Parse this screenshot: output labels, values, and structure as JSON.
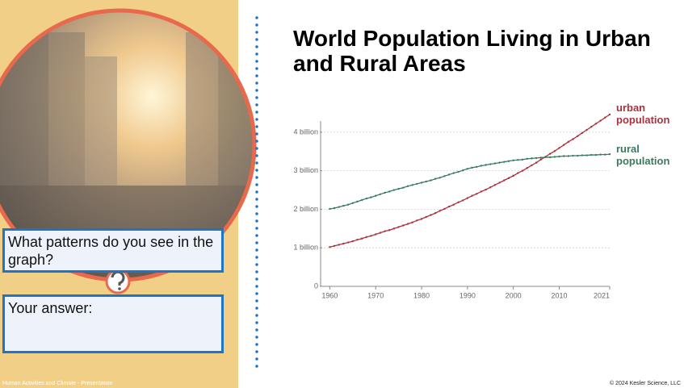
{
  "title": "World Population Living in Urban and Rural Areas",
  "question": "What patterns do you see in the graph?",
  "answer_label": "Your answer:",
  "footer_left": "Human Activities and Climate - Presentation",
  "footer_right": "© 2024 Kesler Science, LLC",
  "chart_data": {
    "type": "line",
    "x": [
      1960,
      1961,
      1962,
      1963,
      1964,
      1965,
      1966,
      1967,
      1968,
      1969,
      1970,
      1971,
      1972,
      1973,
      1974,
      1975,
      1976,
      1977,
      1978,
      1979,
      1980,
      1981,
      1982,
      1983,
      1984,
      1985,
      1986,
      1987,
      1988,
      1989,
      1990,
      1991,
      1992,
      1993,
      1994,
      1995,
      1996,
      1997,
      1998,
      1999,
      2000,
      2001,
      2002,
      2003,
      2004,
      2005,
      2006,
      2007,
      2008,
      2009,
      2010,
      2011,
      2012,
      2013,
      2014,
      2015,
      2016,
      2017,
      2018,
      2019,
      2020,
      2021
    ],
    "series": [
      {
        "name": "urban population",
        "color": "#a8323e",
        "values": [
          1.02,
          1.05,
          1.08,
          1.11,
          1.14,
          1.17,
          1.21,
          1.24,
          1.28,
          1.31,
          1.35,
          1.39,
          1.43,
          1.46,
          1.5,
          1.54,
          1.58,
          1.62,
          1.66,
          1.71,
          1.75,
          1.8,
          1.85,
          1.9,
          1.96,
          2.01,
          2.07,
          2.12,
          2.18,
          2.23,
          2.29,
          2.35,
          2.4,
          2.46,
          2.51,
          2.57,
          2.63,
          2.69,
          2.75,
          2.81,
          2.87,
          2.94,
          3.0,
          3.07,
          3.14,
          3.21,
          3.29,
          3.36,
          3.44,
          3.51,
          3.59,
          3.67,
          3.75,
          3.82,
          3.9,
          3.98,
          4.06,
          4.14,
          4.22,
          4.3,
          4.38,
          4.46
        ]
      },
      {
        "name": "rural population",
        "color": "#3a7a5e",
        "values": [
          2.01,
          2.03,
          2.06,
          2.09,
          2.12,
          2.16,
          2.2,
          2.24,
          2.28,
          2.31,
          2.35,
          2.39,
          2.43,
          2.46,
          2.5,
          2.53,
          2.56,
          2.6,
          2.63,
          2.66,
          2.69,
          2.72,
          2.75,
          2.79,
          2.82,
          2.86,
          2.9,
          2.94,
          2.97,
          3.01,
          3.05,
          3.08,
          3.1,
          3.13,
          3.15,
          3.17,
          3.19,
          3.21,
          3.23,
          3.25,
          3.27,
          3.28,
          3.29,
          3.31,
          3.32,
          3.33,
          3.34,
          3.35,
          3.35,
          3.36,
          3.37,
          3.38,
          3.38,
          3.39,
          3.39,
          3.4,
          3.4,
          3.41,
          3.41,
          3.42,
          3.42,
          3.43
        ]
      }
    ],
    "xlim": [
      1958,
      2021
    ],
    "xticks": [
      1960,
      1970,
      1980,
      1990,
      2000,
      2010,
      2021
    ],
    "ylim": [
      0,
      4.5
    ],
    "yticks": [
      0,
      {
        "value": 1,
        "label": "1 billion"
      },
      {
        "value": 2,
        "label": "2 billion"
      },
      {
        "value": 3,
        "label": "3 billion"
      },
      {
        "value": 4,
        "label": "4 billion"
      }
    ],
    "grid": true
  }
}
